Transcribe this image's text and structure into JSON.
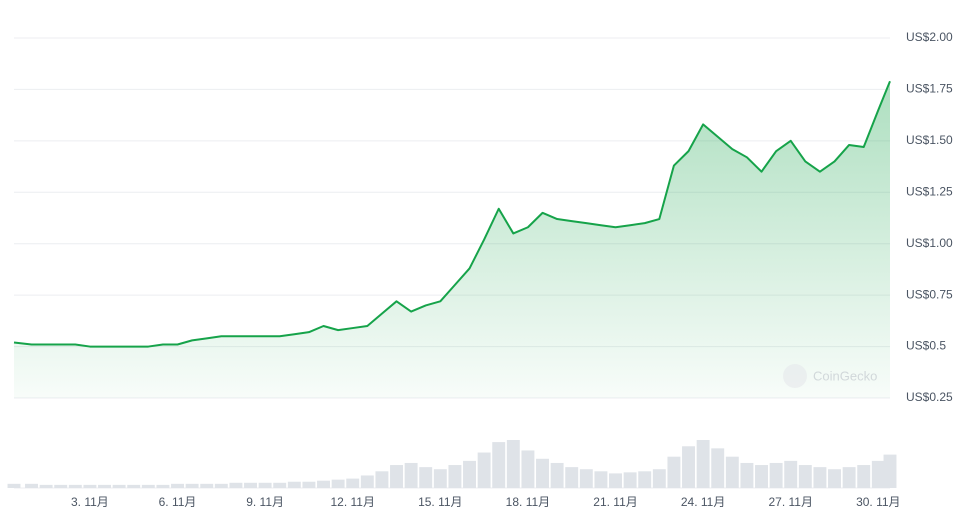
{
  "chart_data": {
    "type": "line",
    "watermark": "CoinGecko",
    "x": [
      0.4,
      1,
      1.5,
      2,
      2.5,
      3,
      3.5,
      4,
      4.5,
      5,
      5.5,
      6,
      6.5,
      7,
      7.5,
      8,
      8.5,
      9,
      9.5,
      10,
      10.5,
      11,
      11.5,
      12,
      12.5,
      13,
      13.5,
      14,
      14.5,
      15,
      15.5,
      16,
      16.5,
      17,
      17.5,
      18,
      18.5,
      19,
      19.5,
      20,
      20.5,
      21,
      21.5,
      22,
      22.5,
      23,
      23.5,
      24,
      24.5,
      25,
      25.5,
      26,
      26.5,
      27,
      27.5,
      28,
      28.5,
      29,
      29.5,
      30,
      30.4
    ],
    "series": [
      {
        "color": "#16a34a",
        "values": [
          0.52,
          0.51,
          0.51,
          0.51,
          0.51,
          0.5,
          0.5,
          0.5,
          0.5,
          0.5,
          0.51,
          0.51,
          0.53,
          0.54,
          0.55,
          0.55,
          0.55,
          0.55,
          0.55,
          0.56,
          0.57,
          0.6,
          0.58,
          0.59,
          0.6,
          0.66,
          0.72,
          0.67,
          0.7,
          0.72,
          0.8,
          0.88,
          1.02,
          1.17,
          1.05,
          1.08,
          1.15,
          1.12,
          1.11,
          1.1,
          1.09,
          1.08,
          1.09,
          1.1,
          1.12,
          1.38,
          1.45,
          1.58,
          1.52,
          1.46,
          1.42,
          1.35,
          1.45,
          1.5,
          1.4,
          1.35,
          1.4,
          1.48,
          1.47,
          1.65,
          1.79
        ]
      },
      {
        "axis": "volume",
        "color": "#dfe3e8",
        "values": [
          4,
          4,
          3,
          3,
          3,
          3,
          3,
          3,
          3,
          3,
          3,
          4,
          4,
          4,
          4,
          5,
          5,
          5,
          5,
          6,
          6,
          7,
          8,
          9,
          12,
          16,
          22,
          24,
          20,
          18,
          22,
          26,
          34,
          44,
          46,
          36,
          28,
          24,
          20,
          18,
          16,
          14,
          15,
          16,
          18,
          30,
          40,
          46,
          38,
          30,
          24,
          22,
          24,
          26,
          22,
          20,
          18,
          20,
          22,
          26,
          32
        ]
      }
    ],
    "ylim": [
      0.25,
      2.0
    ],
    "yticks": [
      {
        "value": 2.0,
        "label": "US$2.00"
      },
      {
        "value": 1.75,
        "label": "US$1.75"
      },
      {
        "value": 1.5,
        "label": "US$1.50"
      },
      {
        "value": 1.25,
        "label": "US$1.25"
      },
      {
        "value": 1.0,
        "label": "US$1.00"
      },
      {
        "value": 0.75,
        "label": "US$0.75"
      },
      {
        "value": 0.5,
        "label": "US$0.5"
      },
      {
        "value": 0.25,
        "label": "US$0.25"
      }
    ],
    "xlim": [
      0.4,
      30.4
    ],
    "xticks": [
      {
        "value": 3,
        "label": "3. 11月"
      },
      {
        "value": 6,
        "label": "6. 11月"
      },
      {
        "value": 9,
        "label": "9. 11月"
      },
      {
        "value": 12,
        "label": "12. 11月"
      },
      {
        "value": 15,
        "label": "15. 11月"
      },
      {
        "value": 18,
        "label": "18. 11月"
      },
      {
        "value": 21,
        "label": "21. 11月"
      },
      {
        "value": 24,
        "label": "24. 11月"
      },
      {
        "value": 27,
        "label": "27. 11月"
      },
      {
        "value": 30,
        "label": "30. 11月"
      }
    ],
    "grid": true
  }
}
